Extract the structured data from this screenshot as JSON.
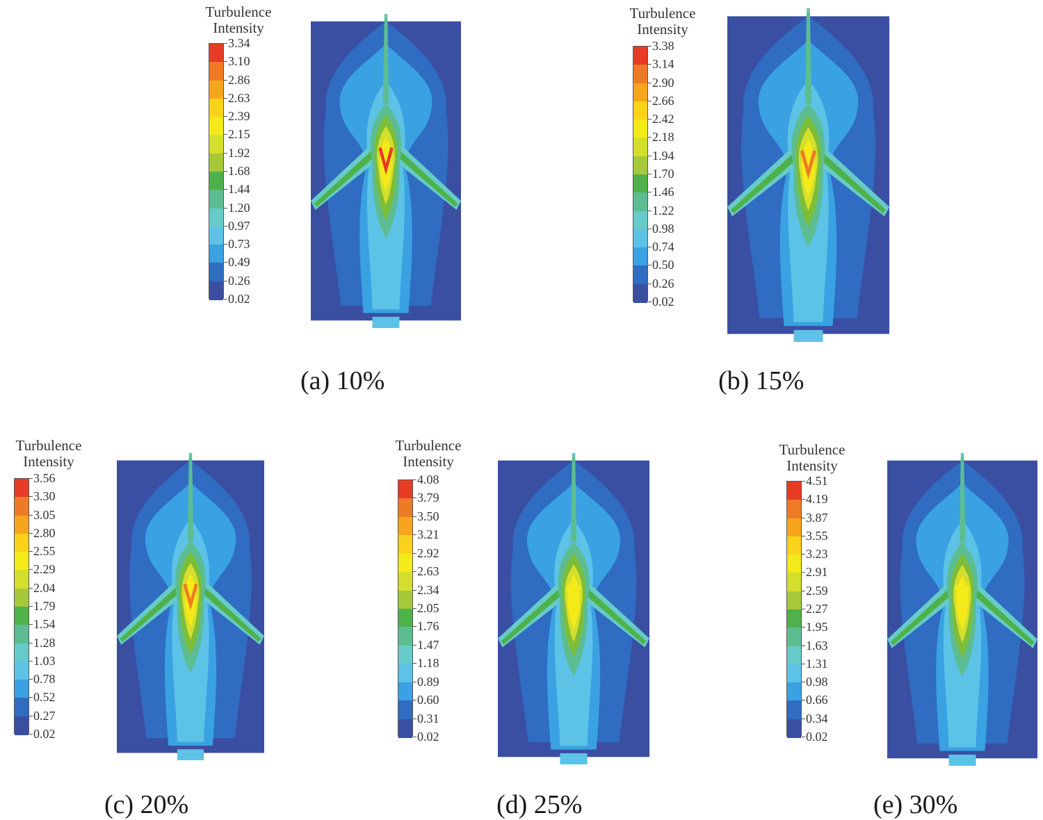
{
  "colorbar_colors": [
    "#3a4fa2",
    "#2f6cc2",
    "#3aa1e3",
    "#5cc3e6",
    "#66cbc9",
    "#5dbd92",
    "#4fb14a",
    "#7cbd3a",
    "#a6c93a",
    "#d4de2c",
    "#f4ea1a",
    "#fbd21a",
    "#f7a51e",
    "#ef7a25",
    "#e63c25"
  ],
  "panels": [
    {
      "caption": "(a) 10%",
      "legend_title_line1": "Turbulence",
      "legend_title_line2": "Intensity",
      "ticks": [
        "3.34",
        "3.10",
        "2.86",
        "2.63",
        "2.39",
        "2.15",
        "1.92",
        "1.68",
        "1.44",
        "1.20",
        "0.97",
        "0.73",
        "0.49",
        "0.26",
        "0.02"
      ]
    },
    {
      "caption": "(b) 15%",
      "legend_title_line1": "Turbulence",
      "legend_title_line2": "Intensity",
      "ticks": [
        "3.38",
        "3.14",
        "2.90",
        "2.66",
        "2.42",
        "2.18",
        "1.94",
        "1.70",
        "1.46",
        "1.22",
        "0.98",
        "0.74",
        "0.50",
        "0.26",
        "0.02"
      ]
    },
    {
      "caption": "(c) 20%",
      "legend_title_line1": "Turbulence",
      "legend_title_line2": "Intensity",
      "ticks": [
        "3.56",
        "3.30",
        "3.05",
        "2.80",
        "2.55",
        "2.29",
        "2.04",
        "1.79",
        "1.54",
        "1.28",
        "1.03",
        "0.78",
        "0.52",
        "0.27",
        "0.02"
      ]
    },
    {
      "caption": "(d) 25%",
      "legend_title_line1": "Turbulence",
      "legend_title_line2": "Intensity",
      "ticks": [
        "4.08",
        "3.79",
        "3.50",
        "3.21",
        "2.92",
        "2.63",
        "2.34",
        "2.05",
        "1.76",
        "1.47",
        "1.18",
        "0.89",
        "0.60",
        "0.31",
        "0.02"
      ]
    },
    {
      "caption": "(e) 30%",
      "legend_title_line1": "Turbulence",
      "legend_title_line2": "Intensity",
      "ticks": [
        "4.51",
        "4.19",
        "3.87",
        "3.55",
        "3.23",
        "2.91",
        "2.59",
        "2.27",
        "1.95",
        "1.63",
        "1.31",
        "0.98",
        "0.66",
        "0.34",
        "0.02"
      ]
    }
  ]
}
